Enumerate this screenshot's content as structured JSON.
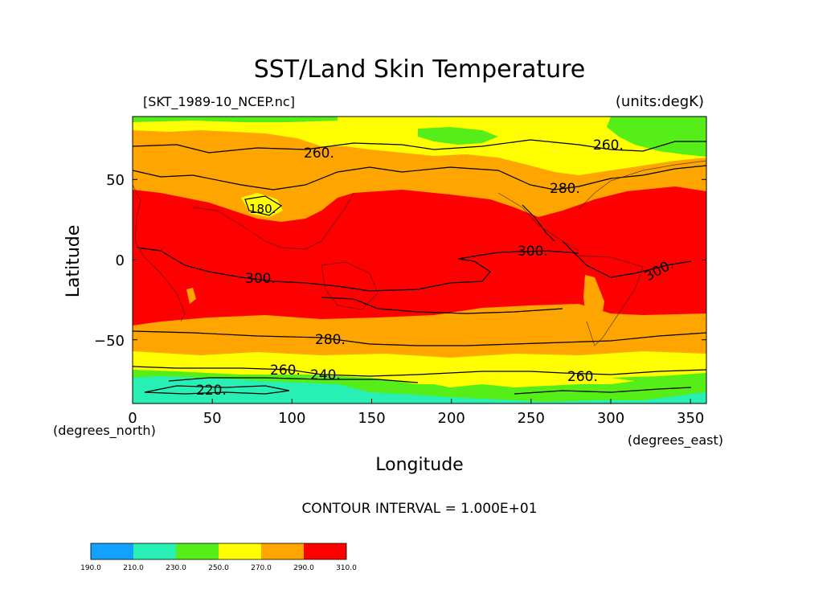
{
  "title": "SST/Land Skin Temperature",
  "source_file": "[SKT_1989-10_NCEP.nc]",
  "units": "(units:degK)",
  "map": {
    "x_axis": {
      "label": "Longitude",
      "unit_note": "(degrees_east)",
      "range": [
        0,
        360
      ],
      "ticks": [
        "0",
        "50",
        "100",
        "150",
        "200",
        "250",
        "300",
        "350"
      ]
    },
    "y_axis": {
      "label": "Latitude",
      "unit_note": "(degrees_north)",
      "range": [
        -90,
        90
      ],
      "ticks": [
        "50",
        "0",
        "−50"
      ]
    },
    "contour_labels": [
      "260.",
      "260.",
      "280.",
      "180.",
      "300.",
      "300.",
      "300.",
      "280.",
      "260.",
      "240.",
      "260.",
      "220."
    ],
    "fill_colors": {
      "190-210": "#12a1ff",
      "210-230": "#28f0b4",
      "230-250": "#55ee18",
      "250-270": "#ffff00",
      "270-290": "#ffa500",
      "290-310": "#ff0000"
    }
  },
  "contour_interval": "CONTOUR INTERVAL = 1.000E+01",
  "colorbar": {
    "labels": [
      "190.0",
      "210.0",
      "230.0",
      "250.0",
      "270.0",
      "290.0",
      "310.0"
    ],
    "colors": [
      "#12a1ff",
      "#28f0b4",
      "#55ee18",
      "#ffff00",
      "#ffa500",
      "#ff0000"
    ]
  }
}
